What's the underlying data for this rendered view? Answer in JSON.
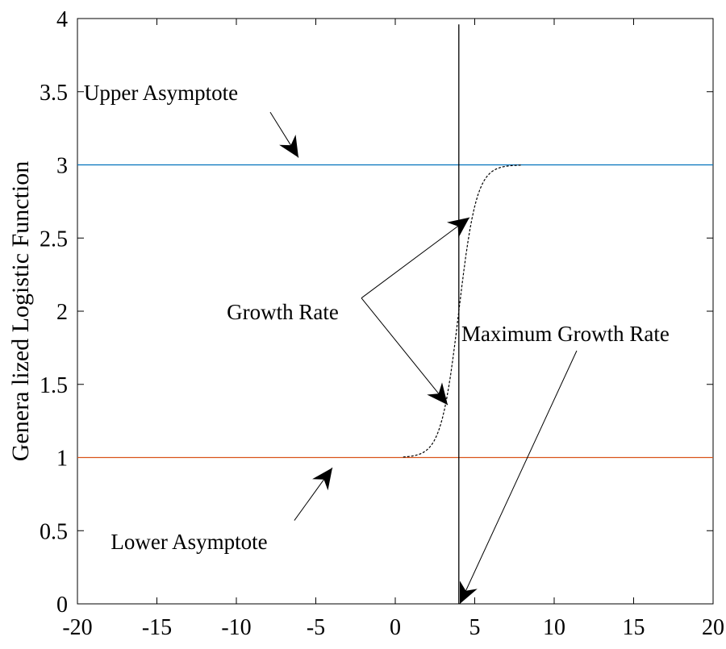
{
  "chart_data": {
    "type": "line",
    "title": "",
    "xlabel": "",
    "ylabel": "Genera lized Logistic Function",
    "xlim": [
      -20,
      20
    ],
    "ylim": [
      0,
      4
    ],
    "xticks": [
      "-20",
      "-15",
      "-10",
      "-5",
      "0",
      "5",
      "10",
      "15",
      "20"
    ],
    "yticks": [
      "0",
      "0.5",
      "1",
      "1.5",
      "2",
      "2.5",
      "3",
      "3.5",
      "4"
    ],
    "grid": false,
    "series": [
      {
        "role": "upper-asymptote",
        "y": 3,
        "color": "#0072BD",
        "style": "solid"
      },
      {
        "role": "lower-asymptote",
        "y": 1,
        "color": "#D95319",
        "style": "solid"
      },
      {
        "role": "logistic-curve",
        "color": "#000000",
        "style": "dashed",
        "lower": 1,
        "upper": 3,
        "midpoint": 4,
        "rate": 1.8,
        "x_range": [
          0.5,
          7.9
        ]
      },
      {
        "role": "vertical-line",
        "x": 4,
        "y_range": [
          0,
          3.96
        ],
        "color": "#000000",
        "style": "solid"
      }
    ],
    "annotations": [
      {
        "text": "Upper Asymptote",
        "text_at": [
          -19.6,
          3.5
        ],
        "arrows": [
          {
            "from": [
              -7.87,
              3.36
            ],
            "to": [
              -6.09,
              3.05
            ]
          }
        ]
      },
      {
        "text": "Growth Rate",
        "text_at": [
          -10.6,
          2.0
        ],
        "arrows": [
          {
            "from": [
              -2.13,
              2.09
            ],
            "to": [
              4.67,
              2.64
            ]
          },
          {
            "from": [
              -2.13,
              2.09
            ],
            "to": [
              3.3,
              1.36
            ]
          }
        ]
      },
      {
        "text": "Maximum Growth Rate",
        "text_at": [
          4.16,
          1.85
        ],
        "arrows": [
          {
            "from": [
              11.42,
              1.73
            ],
            "to": [
              4.06,
              0.0
            ]
          }
        ]
      },
      {
        "text": "Lower Asymptote",
        "text_at": [
          -17.9,
          0.43
        ],
        "arrows": [
          {
            "from": [
              -6.35,
              0.57
            ],
            "to": [
              -3.96,
              0.93
            ]
          }
        ]
      }
    ]
  }
}
